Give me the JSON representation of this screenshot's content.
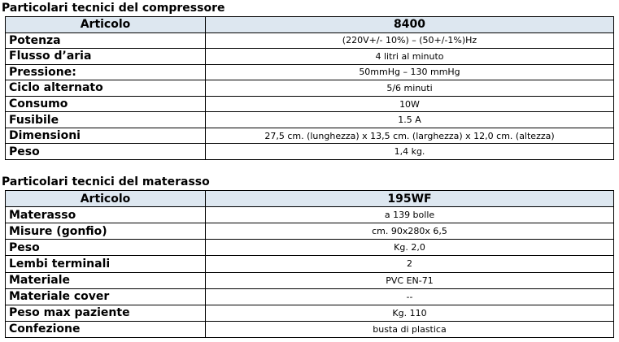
{
  "tables": [
    {
      "title": "Particolari tecnici del compressore",
      "header": [
        "Articolo",
        "8400"
      ],
      "rows": [
        [
          "Potenza",
          "(220V+/- 10%) – (50+/-1%)Hz"
        ],
        [
          "Flusso d’aria",
          "4 litri al minuto"
        ],
        [
          "Pressione:",
          "50mmHg – 130 mmHg"
        ],
        [
          "Ciclo alternato",
          "5/6 minuti"
        ],
        [
          "Consumo",
          "10W"
        ],
        [
          "Fusibile",
          "1.5 A"
        ],
        [
          "Dimensioni",
          "27,5 cm. (lunghezza) x 13,5 cm. (larghezza) x 12,0 cm. (altezza)"
        ],
        [
          "Peso",
          "1,4 kg."
        ]
      ]
    },
    {
      "title": "Particolari tecnici del materasso",
      "header": [
        "Articolo",
        "195WF"
      ],
      "rows": [
        [
          "Materasso",
          "a 139 bolle"
        ],
        [
          "Misure (gonfio)",
          "cm. 90x280x 6,5"
        ],
        [
          "Peso",
          "Kg. 2,0"
        ],
        [
          "Lembi terminali",
          "2"
        ],
        [
          "Materiale",
          "PVC EN-71"
        ],
        [
          "Materiale cover",
          "--"
        ],
        [
          "Peso max paziente",
          "Kg. 110"
        ],
        [
          "Confezione",
          "busta di plastica"
        ]
      ]
    }
  ]
}
